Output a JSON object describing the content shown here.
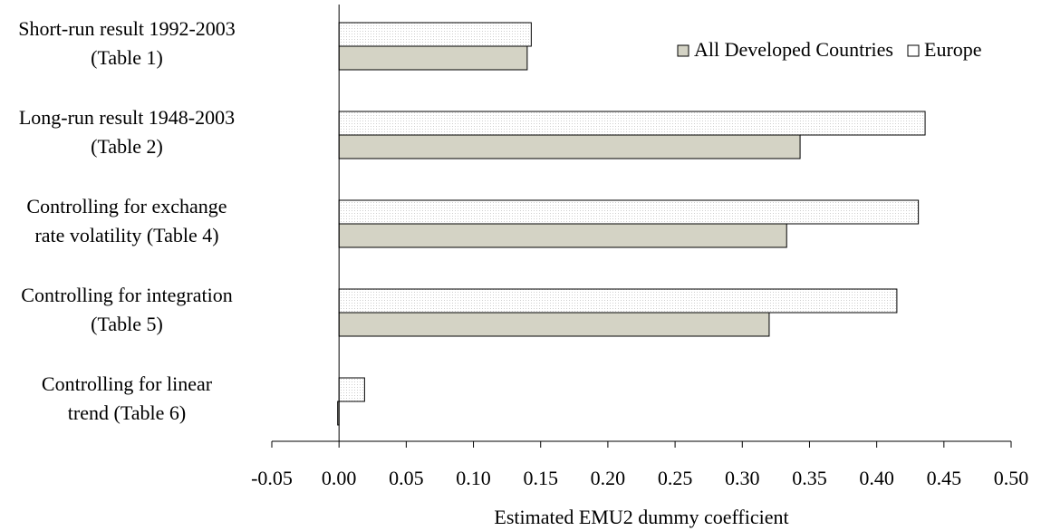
{
  "chart_data": {
    "type": "bar",
    "orientation": "horizontal",
    "categories": [
      [
        "Short-run result 1992-2003",
        "(Table 1)"
      ],
      [
        "Long-run result 1948-2003",
        "(Table 2)"
      ],
      [
        "Controlling for exchange",
        "rate volatility (Table 4)"
      ],
      [
        "Controlling for integration",
        "(Table 5)"
      ],
      [
        "Controlling for linear",
        "trend (Table 6)"
      ]
    ],
    "series": [
      {
        "name": "Europe",
        "values": [
          0.143,
          0.436,
          0.431,
          0.415,
          0.019
        ]
      },
      {
        "name": "All Developed Countries",
        "values": [
          0.14,
          0.343,
          0.333,
          0.32,
          -0.001
        ]
      }
    ],
    "xlabel": "Estimated EMU2 dummy coefficient",
    "ylabel": "",
    "xlim": [
      -0.05,
      0.5
    ],
    "xticks": [
      "-0.05",
      "0.00",
      "0.05",
      "0.10",
      "0.15",
      "0.20",
      "0.25",
      "0.30",
      "0.35",
      "0.40",
      "0.45",
      "0.50"
    ],
    "grid": false,
    "legend_position": "top-right",
    "legend_order": [
      "All Developed Countries",
      "Europe"
    ],
    "colors": {
      "All Developed Countries": "#d4d3c5",
      "Europe": "#ffffff"
    }
  }
}
